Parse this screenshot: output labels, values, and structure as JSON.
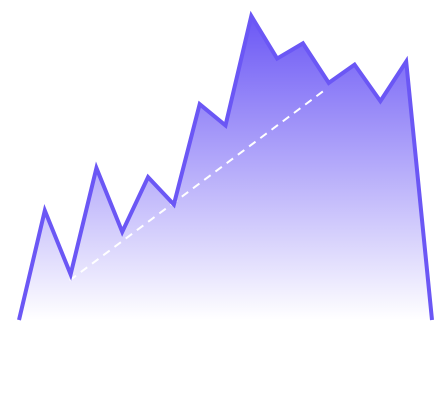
{
  "colors": {
    "line": "#6b57f5",
    "fill_top": "#6b57f5",
    "fill_bottom": "#ffffff",
    "trend": "#ffffff",
    "background": "#ffffff"
  },
  "chart_data": {
    "type": "area",
    "title": "",
    "xlabel": "",
    "ylabel": "",
    "grid": false,
    "legend": "none",
    "x": [
      0,
      1,
      2,
      3,
      4,
      5,
      6,
      7,
      8,
      9,
      10,
      11,
      12,
      13,
      14,
      15,
      16
    ],
    "xlim": [
      0,
      16
    ],
    "ylim": [
      0,
      100
    ],
    "series": [
      {
        "values": [
          0,
          36,
          15,
          50,
          29,
          47,
          38,
          71,
          64,
          100,
          86,
          91,
          78,
          84,
          72,
          85,
          0
        ]
      }
    ],
    "trendline": {
      "style": "dashed",
      "from": [
        1.96,
        13
      ],
      "to": [
        11.9,
        76
      ]
    }
  }
}
